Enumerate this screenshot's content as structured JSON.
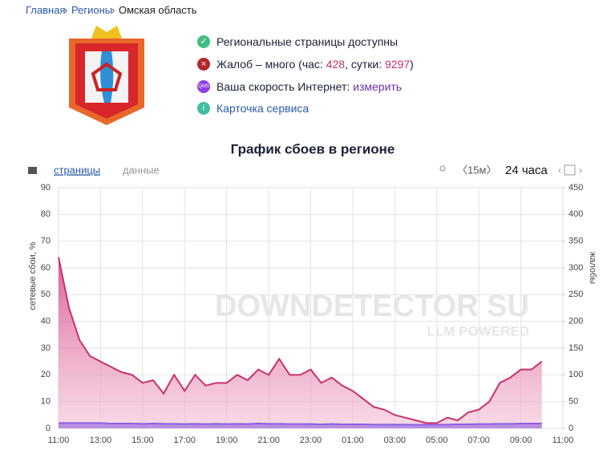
{
  "breadcrumb": [
    "Главная",
    "Регионы",
    "Омская область"
  ],
  "status": {
    "pages": "Региональные страницы доступны",
    "complaints": {
      "prefix": "Жалоб – много (час: ",
      "hour": 428,
      "middle": ", сутки: ",
      "day": 9297,
      "suffix": ")"
    },
    "speed": {
      "icon": "QMS",
      "text": "Ваша скорость Интернет: ",
      "link": "измерить"
    },
    "card": "Карточка сервиса"
  },
  "toolbar": {
    "tabs": [
      "страницы",
      "данные"
    ],
    "interval": "〈15м〉",
    "period": "24 часа"
  },
  "chart_data": {
    "type": "area",
    "title": "График сбоев в регионе",
    "y_label": "сетевые сбои, %",
    "y2_label": "жалобы",
    "watermark": [
      "DOWNDETECTOR SU",
      "LLM POWERED"
    ],
    "x": [
      0,
      0.5,
      1,
      1.5,
      2,
      2.5,
      3,
      3.5,
      4,
      4.5,
      5,
      5.5,
      6,
      6.5,
      7,
      7.5,
      8,
      8.5,
      9,
      9.5,
      10,
      10.5,
      11,
      11.5,
      12,
      12.5,
      13,
      13.5,
      14,
      14.5,
      15,
      15.5,
      16,
      16.5,
      17,
      17.5,
      18,
      18.5,
      19,
      19.5,
      20,
      20.5,
      21,
      21.5,
      22,
      22.5,
      23
    ],
    "series": [
      {
        "color": "#c8306e",
        "values": [
          64,
          45,
          33,
          27,
          25,
          23,
          21,
          20,
          17,
          18,
          13,
          20,
          14,
          20,
          16,
          17,
          17,
          20,
          18,
          22,
          20,
          26,
          20,
          20,
          22,
          17,
          19,
          16,
          14,
          11,
          8,
          7,
          5,
          4,
          3,
          2,
          2,
          4,
          3,
          6,
          7,
          10,
          17,
          19,
          22,
          22,
          25
        ]
      },
      {
        "color": "#8e5fe0",
        "values": [
          2,
          2,
          2,
          2,
          2,
          1.8,
          1.8,
          1.8,
          1.7,
          1.8,
          1.7,
          1.7,
          1.6,
          1.7,
          1.6,
          1.7,
          1.6,
          1.7,
          1.6,
          1.8,
          1.7,
          1.7,
          1.6,
          1.6,
          1.6,
          1.5,
          1.6,
          1.5,
          1.5,
          1.5,
          1.4,
          1.4,
          1.4,
          1.4,
          1.3,
          1.4,
          1.4,
          1.4,
          1.5,
          1.5,
          1.6,
          1.6,
          1.7,
          1.7,
          1.8,
          1.8,
          1.8
        ]
      }
    ],
    "xlim": [
      0,
      24
    ],
    "xticks": [
      {
        "value": 0,
        "label": "11:00"
      },
      {
        "value": 2,
        "label": "13:00"
      },
      {
        "value": 4,
        "label": "15:00"
      },
      {
        "value": 6,
        "label": "17:00"
      },
      {
        "value": 8,
        "label": "19:00"
      },
      {
        "value": 10,
        "label": "21:00"
      },
      {
        "value": 12,
        "label": "23:00"
      },
      {
        "value": 14,
        "label": "01:00"
      },
      {
        "value": 16,
        "label": "03:00"
      },
      {
        "value": 18,
        "label": "05:00"
      },
      {
        "value": 20,
        "label": "07:00"
      },
      {
        "value": 22,
        "label": "09:00"
      },
      {
        "value": 24,
        "label": "11:00"
      }
    ],
    "ylim": [
      0,
      90
    ],
    "yticks": [
      0,
      10,
      20,
      30,
      40,
      50,
      60,
      70,
      80,
      90
    ],
    "y2lim": [
      0,
      450
    ],
    "y2ticks": [
      0,
      50,
      100,
      150,
      200,
      250,
      300,
      350,
      400,
      450
    ],
    "grid": true
  }
}
